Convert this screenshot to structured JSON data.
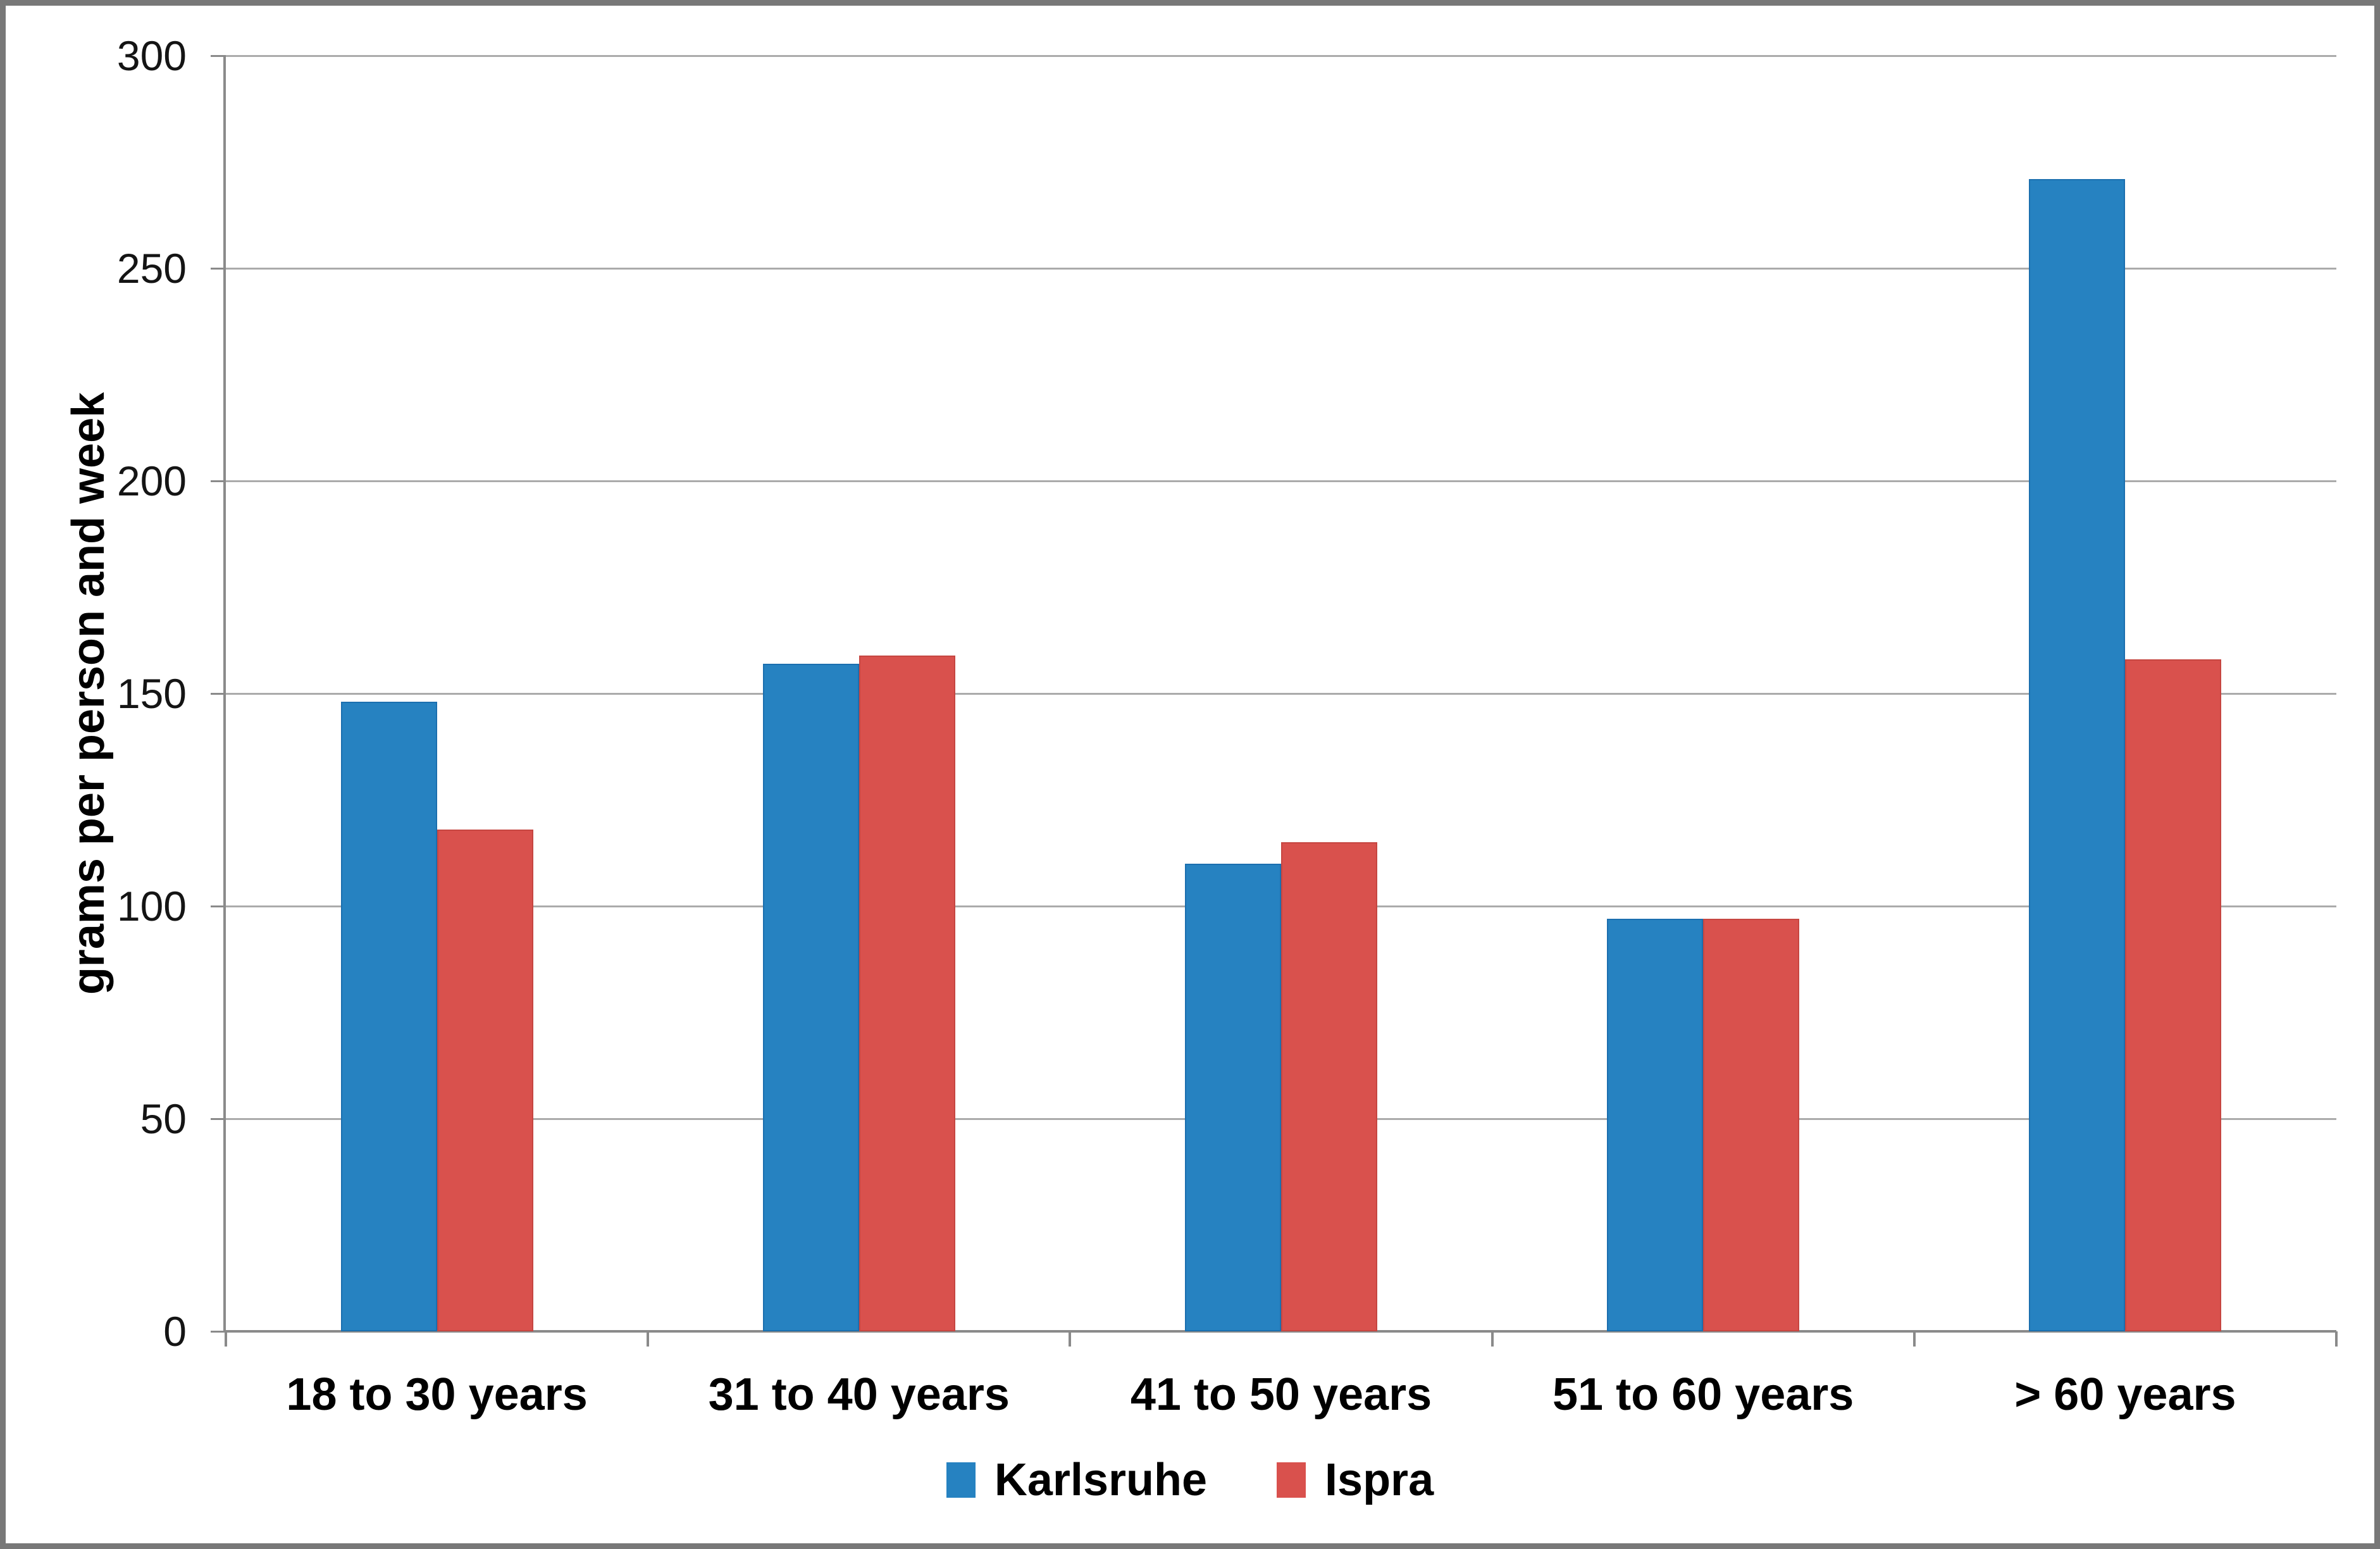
{
  "chart_data": {
    "type": "bar",
    "title": "",
    "categories": [
      "18 to 30 years",
      "31 to 40 years",
      "41 to 50 years",
      "51 to 60 years",
      "> 60 years"
    ],
    "series": [
      {
        "name": "Karlsruhe",
        "color": "#2682C1",
        "border_color": "#1B6FAF",
        "values": [
          148,
          157,
          110,
          97,
          271
        ]
      },
      {
        "name": "Ispra",
        "color": "#D9514D",
        "border_color": "#C64641",
        "values": [
          118,
          159,
          115,
          97,
          158
        ]
      }
    ],
    "ylabel": "grams per person and week",
    "xlabel": "",
    "ylim": [
      0,
      300
    ],
    "yticks": [
      0,
      50,
      100,
      150,
      200,
      250,
      300
    ],
    "grid": "horizontal",
    "legend_position": "bottom"
  },
  "styles": {
    "background": "#FFFFFF",
    "frame_color": "#787878",
    "gridline_color": "#ABABAB",
    "axis_color": "#8A8A8A",
    "text_color": "#141414"
  }
}
